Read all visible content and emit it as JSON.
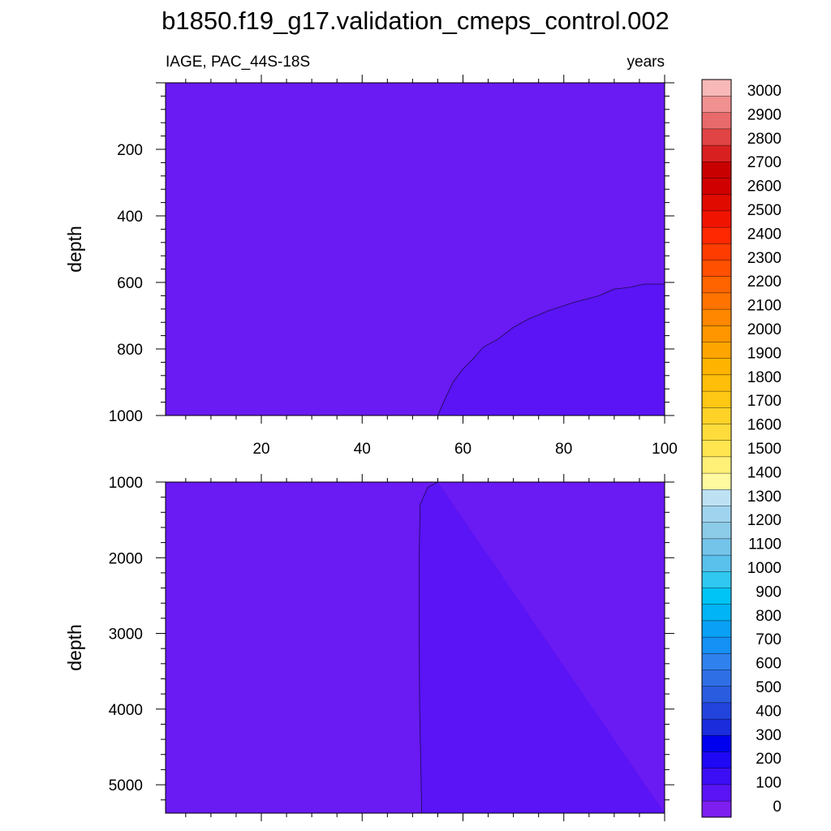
{
  "chart_data": {
    "type": "contour",
    "title": "b1850.f19_g17.validation_cmeps_control.002",
    "left_label": "IAGE, PAC_44S-18S",
    "right_label": "years",
    "x": {
      "ticks": [
        20,
        40,
        60,
        80,
        100
      ],
      "range": [
        1,
        100
      ]
    },
    "colorbar": {
      "levels": [
        0,
        100,
        200,
        300,
        400,
        500,
        600,
        700,
        800,
        900,
        1000,
        1100,
        1200,
        1300,
        1400,
        1500,
        1600,
        1700,
        1800,
        1900,
        2000,
        2100,
        2200,
        2300,
        2400,
        2500,
        2600,
        2700,
        2800,
        2900,
        3000
      ],
      "colors": [
        "#7e1ef0",
        "#5a14f5",
        "#3c0ef5",
        "#1e08f5",
        "#0000ee",
        "#1a2cdc",
        "#2244dc",
        "#2a5ce0",
        "#2f6fe6",
        "#2f82ee",
        "#1590f5",
        "#0aa0f5",
        "#00b4f5",
        "#00c4f5",
        "#30c8f0",
        "#5ac0ec",
        "#74c4ea",
        "#8ccce8",
        "#a0d4ee",
        "#bee2f4",
        "#fffaa0",
        "#fff078",
        "#ffe650",
        "#ffdc3c",
        "#ffd228",
        "#ffc814",
        "#ffbe0a",
        "#ffb400",
        "#ffa500",
        "#ff9600",
        "#ff8700",
        "#ff7300",
        "#ff6400",
        "#ff5000",
        "#ff3c00",
        "#ff2800",
        "#f01400",
        "#e00a00",
        "#d00000",
        "#c80000",
        "#d82020",
        "#e04444",
        "#e86a6a",
        "#f09090",
        "#f8b8b8"
      ]
    },
    "panels": [
      {
        "ylabel": "depth",
        "y_ticks": [
          200,
          400,
          600,
          800,
          1000
        ],
        "y_range": [
          0,
          1000
        ],
        "background_color": "#6a1af2",
        "regions": [
          {
            "color": "#5a14f5",
            "boundary": [
              [
                55,
                1000
              ],
              [
                56,
                965
              ],
              [
                58,
                900
              ],
              [
                60,
                860
              ],
              [
                62,
                830
              ],
              [
                64,
                795
              ],
              [
                67,
                770
              ],
              [
                70,
                735
              ],
              [
                73,
                710
              ],
              [
                77,
                685
              ],
              [
                82,
                660
              ],
              [
                87,
                640
              ],
              [
                90,
                620
              ],
              [
                93,
                615
              ],
              [
                96,
                605
              ],
              [
                100,
                605
              ]
            ]
          }
        ]
      },
      {
        "ylabel": "depth",
        "y_ticks": [
          1000,
          2000,
          3000,
          4000,
          5000
        ],
        "y_range": [
          1000,
          5375
        ],
        "background_color": "#6a1af2",
        "regions": [
          {
            "color": "#5a14f5",
            "boundary": [
              [
                55,
                1000
              ],
              [
                53,
                1070
              ],
              [
                51.5,
                1300
              ],
              [
                51.3,
                2000
              ],
              [
                51.3,
                3000
              ],
              [
                51.4,
                4000
              ],
              [
                51.7,
                5000
              ],
              [
                51.8,
                5375
              ]
            ]
          }
        ]
      }
    ]
  }
}
